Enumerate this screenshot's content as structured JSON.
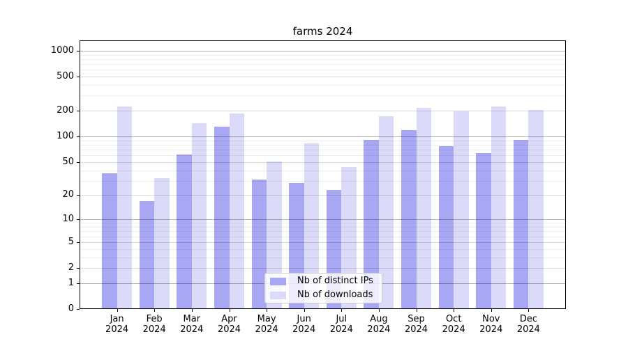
{
  "chart_data": {
    "type": "bar",
    "title": "farms 2024",
    "categories": [
      "Jan 2024",
      "Feb 2024",
      "Mar 2024",
      "Apr 2024",
      "May 2024",
      "Jun 2024",
      "Jul 2024",
      "Aug 2024",
      "Sep 2024",
      "Oct 2024",
      "Nov 2024",
      "Dec 2024"
    ],
    "series": [
      {
        "name": "Nb of distinct IPs",
        "color": "#a7a7f3",
        "values": [
          37,
          17,
          61,
          131,
          31,
          28,
          23,
          92,
          119,
          77,
          64,
          92
        ]
      },
      {
        "name": "Nb of downloads",
        "color": "#dbdbf9",
        "values": [
          225,
          32,
          142,
          187,
          51,
          83,
          44,
          173,
          215,
          197,
          224,
          204
        ]
      }
    ],
    "xlabel": "",
    "ylabel": "",
    "yscale": "log1p",
    "yticks": [
      0,
      1,
      2,
      5,
      10,
      20,
      50,
      100,
      200,
      500,
      1000
    ],
    "minor_yticks": [
      3,
      4,
      6,
      7,
      8,
      9,
      30,
      40,
      60,
      70,
      80,
      90,
      300,
      400,
      600,
      700,
      800,
      900
    ],
    "ylim": [
      0,
      1318
    ],
    "grid": true,
    "legend_position": "lower center"
  },
  "colors": {
    "grid_major": "rgba(0,0,0,0.30)",
    "grid_mid": "rgba(0,0,0,0.14)",
    "grid_minor": "rgba(0,0,0,0.065)",
    "axis": "#000000"
  }
}
